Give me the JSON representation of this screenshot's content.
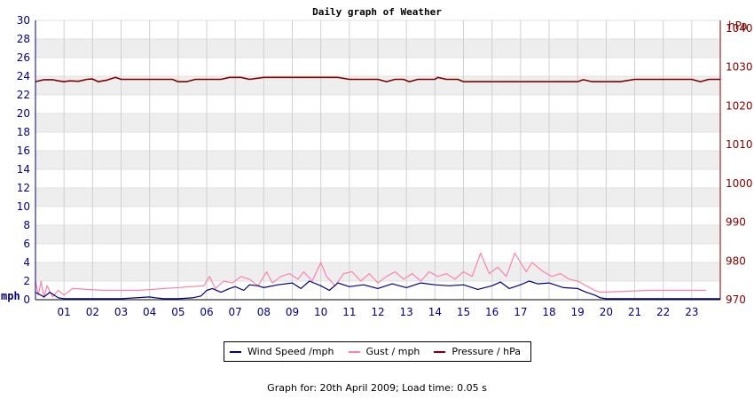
{
  "chart_data": {
    "type": "line",
    "title": "Daily graph of Weather",
    "left_axis": {
      "unit": "mph",
      "ylim": [
        0,
        30
      ],
      "ticks": [
        "0",
        "2",
        "4",
        "6",
        "8",
        "10",
        "12",
        "14",
        "16",
        "18",
        "20",
        "22",
        "24",
        "26",
        "28",
        "30"
      ]
    },
    "right_axis": {
      "unit": "hPa",
      "ylim": [
        970,
        1042
      ],
      "ticks": [
        "970",
        "980",
        "990",
        "1000",
        "1010",
        "1020",
        "1030",
        "1040"
      ]
    },
    "x_axis": {
      "xlim": [
        0,
        24
      ],
      "ticks": [
        "01",
        "02",
        "03",
        "04",
        "05",
        "06",
        "07",
        "08",
        "09",
        "10",
        "11",
        "12",
        "13",
        "14",
        "15",
        "16",
        "17",
        "18",
        "19",
        "20",
        "21",
        "22",
        "23"
      ]
    },
    "grid": true,
    "legend_position": "bottom",
    "series": [
      {
        "name": "Wind Speed /mph",
        "axis": "left",
        "color": "#000080",
        "x": [
          0,
          0.3,
          0.5,
          0.8,
          1.0,
          2.0,
          3.0,
          3.5,
          4.0,
          4.2,
          4.5,
          5.0,
          5.5,
          5.8,
          6.0,
          6.2,
          6.5,
          6.8,
          7.0,
          7.3,
          7.5,
          7.8,
          8.0,
          8.5,
          9.0,
          9.3,
          9.6,
          10.0,
          10.3,
          10.6,
          11.0,
          11.5,
          12.0,
          12.5,
          13.0,
          13.5,
          14.0,
          14.5,
          15.0,
          15.5,
          16.0,
          16.3,
          16.6,
          17.0,
          17.3,
          17.6,
          18.0,
          18.5,
          19.0,
          19.3,
          19.6,
          19.8,
          20.0,
          21.0,
          22.0,
          23.0,
          24.0
        ],
        "values": [
          0.8,
          0.3,
          0.8,
          0.2,
          0.1,
          0.1,
          0.1,
          0.2,
          0.3,
          0.2,
          0.1,
          0.1,
          0.2,
          0.4,
          1.0,
          1.2,
          0.8,
          1.2,
          1.4,
          1.0,
          1.6,
          1.5,
          1.3,
          1.6,
          1.8,
          1.2,
          2.0,
          1.5,
          1.0,
          1.8,
          1.4,
          1.6,
          1.2,
          1.7,
          1.3,
          1.8,
          1.6,
          1.5,
          1.6,
          1.1,
          1.5,
          1.9,
          1.2,
          1.6,
          2.0,
          1.7,
          1.8,
          1.3,
          1.2,
          0.8,
          0.5,
          0.2,
          0.1,
          0.1,
          0.1,
          0.1,
          0.1
        ]
      },
      {
        "name": "Gust / mph",
        "axis": "left",
        "color": "#ff80b0",
        "x": [
          0,
          0.1,
          0.2,
          0.3,
          0.4,
          0.6,
          0.8,
          1.0,
          1.3,
          2.4,
          3.6,
          5.9,
          6.1,
          6.3,
          6.6,
          6.9,
          7.2,
          7.5,
          7.8,
          8.1,
          8.3,
          8.6,
          8.9,
          9.2,
          9.4,
          9.7,
          10.0,
          10.2,
          10.5,
          10.8,
          11.1,
          11.4,
          11.7,
          12.0,
          12.3,
          12.6,
          12.9,
          13.2,
          13.5,
          13.8,
          14.1,
          14.4,
          14.7,
          15.0,
          15.3,
          15.6,
          15.9,
          16.2,
          16.5,
          16.8,
          17.0,
          17.2,
          17.4,
          17.6,
          17.8,
          18.1,
          18.4,
          18.7,
          19.0,
          19.3,
          19.6,
          19.8,
          21.5,
          22.2,
          22.6,
          23.5
        ],
        "values": [
          2.0,
          0.5,
          2.0,
          0.2,
          1.5,
          0.3,
          1.0,
          0.5,
          1.2,
          1.0,
          1.0,
          1.5,
          2.5,
          1.2,
          2.0,
          1.8,
          2.5,
          2.2,
          1.5,
          3.0,
          1.8,
          2.5,
          2.8,
          2.2,
          3.0,
          2.0,
          4.0,
          2.5,
          1.5,
          2.8,
          3.0,
          2.0,
          2.8,
          1.8,
          2.5,
          3.0,
          2.2,
          2.8,
          2.0,
          3.0,
          2.5,
          2.8,
          2.2,
          3.0,
          2.5,
          5.0,
          2.8,
          3.5,
          2.5,
          5.0,
          4.0,
          3.0,
          4.0,
          3.5,
          3.0,
          2.5,
          2.8,
          2.2,
          2.0,
          1.5,
          1.0,
          0.8,
          1.0,
          1.0,
          1.0,
          1.0
        ]
      },
      {
        "name": "Pressure / hPa",
        "axis": "right",
        "color": "#800000",
        "x": [
          0,
          0.3,
          0.6,
          0.8,
          1.0,
          1.2,
          1.5,
          1.8,
          2.0,
          2.2,
          2.5,
          2.8,
          3.0,
          4.0,
          4.8,
          5.0,
          5.3,
          5.6,
          6.0,
          6.5,
          6.8,
          7.2,
          7.5,
          8.0,
          9.0,
          10.0,
          10.6,
          11.0,
          12.0,
          12.3,
          12.6,
          12.9,
          13.1,
          13.4,
          14.0,
          14.1,
          14.4,
          14.8,
          15.0,
          15.3,
          16.0,
          17.0,
          18.0,
          19.0,
          19.2,
          19.5,
          20.0,
          20.5,
          21.0,
          22.0,
          23.0,
          23.3,
          23.6,
          24.0
        ],
        "values": [
          1026.2,
          1026.7,
          1026.7,
          1026.4,
          1026.2,
          1026.4,
          1026.3,
          1026.8,
          1026.9,
          1026.2,
          1026.6,
          1027.3,
          1026.8,
          1026.8,
          1026.8,
          1026.2,
          1026.2,
          1026.8,
          1026.8,
          1026.8,
          1027.3,
          1027.3,
          1026.8,
          1027.3,
          1027.3,
          1027.3,
          1027.3,
          1026.8,
          1026.8,
          1026.2,
          1026.8,
          1026.8,
          1026.2,
          1026.8,
          1026.8,
          1027.3,
          1026.8,
          1026.8,
          1026.2,
          1026.2,
          1026.2,
          1026.2,
          1026.2,
          1026.2,
          1026.7,
          1026.2,
          1026.2,
          1026.2,
          1026.8,
          1026.8,
          1026.8,
          1026.2,
          1026.8,
          1026.8
        ]
      }
    ]
  },
  "footer": {
    "text": "Graph for: 20th April 2009; Load time: 0.05 s"
  }
}
